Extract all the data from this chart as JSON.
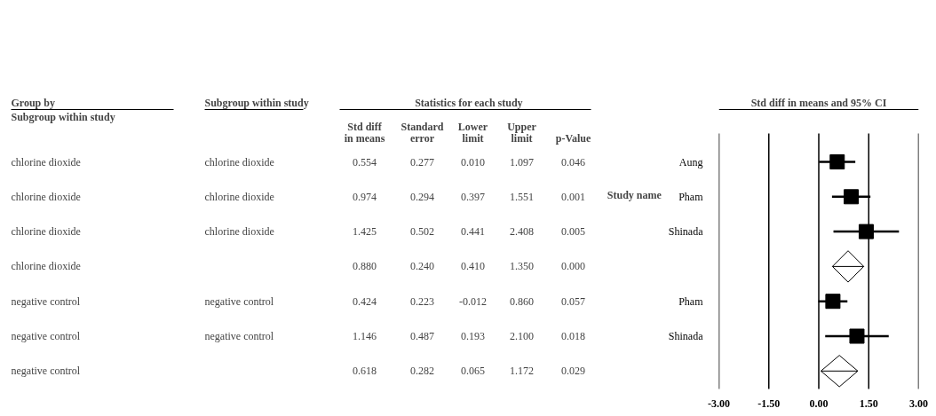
{
  "chart_data": [
    {
      "type": "other",
      "title": "Statistics for each study",
      "subtitle": "Subgroup within study",
      "categories": [
        "Group by",
        "Subgroup within study",
        "Std diff in means",
        "Standard error",
        "Lower limit",
        "Upper limit",
        "p-Value"
      ],
      "cell_labels": [
        [
          "chlorine dioxide",
          "chlorine dioxide",
          "0.554",
          "0.277",
          "0.010",
          "1.097",
          "0.046"
        ],
        [
          "chlorine dioxide",
          "chlorine dioxide",
          "0.974",
          "0.294",
          "0.397",
          "1.551",
          "0.001"
        ],
        [
          "chlorine dioxide",
          "chlorine dioxide",
          "1.425",
          "0.502",
          "0.441",
          "2.408",
          "0.005"
        ],
        [
          "chlorine dioxide",
          null,
          "0.880",
          "0.240",
          "0.410",
          "1.350",
          "0.000"
        ],
        [
          "negative control",
          "negative control",
          "0.424",
          "0.223",
          "-0.012",
          "0.860",
          "0.057"
        ],
        [
          "negative control",
          "negative control",
          "1.146",
          "0.487",
          "0.193",
          "2.100",
          "0.018"
        ],
        [
          "negative control",
          null,
          "0.618",
          "0.282",
          "0.065",
          "1.172",
          "0.029"
        ]
      ]
    },
    {
      "type": "scatter",
      "title": "Std diff in means and 95% CI",
      "ylabel": "Study name",
      "categories": [
        "Aung",
        "Pham",
        "Shinada",
        null,
        "Pham",
        "Shinada",
        null
      ],
      "xlim": [
        -3,
        3
      ],
      "xticks": [
        {
          "value": -3,
          "label": "-3.00"
        },
        {
          "value": -1.5,
          "label": "-1.50"
        },
        {
          "value": 0,
          "label": "0.00"
        },
        {
          "value": 1.5,
          "label": "1.50"
        },
        {
          "value": 3,
          "label": "3.00"
        }
      ],
      "grid": "x",
      "orientation": "horizontal",
      "tick_labels": "xy",
      "series": [
        {
          "marker": "square",
          "color": "#000000",
          "values": [
            0.554,
            0.974,
            1.425,
            null,
            0.424,
            1.146,
            null
          ],
          "errors": [
            [
              0.01,
              1.097
            ],
            [
              0.397,
              1.551
            ],
            [
              0.441,
              2.408
            ],
            null,
            [
              -0.012,
              0.86
            ],
            [
              0.193,
              2.1
            ],
            null
          ]
        },
        {
          "marker": "diamond",
          "color": "#000000",
          "values": [
            null,
            null,
            null,
            0.88,
            null,
            null,
            0.618
          ],
          "errors": [
            null,
            null,
            null,
            [
              0.41,
              1.35
            ],
            null,
            null,
            [
              0.065,
              1.172
            ]
          ]
        }
      ]
    }
  ]
}
